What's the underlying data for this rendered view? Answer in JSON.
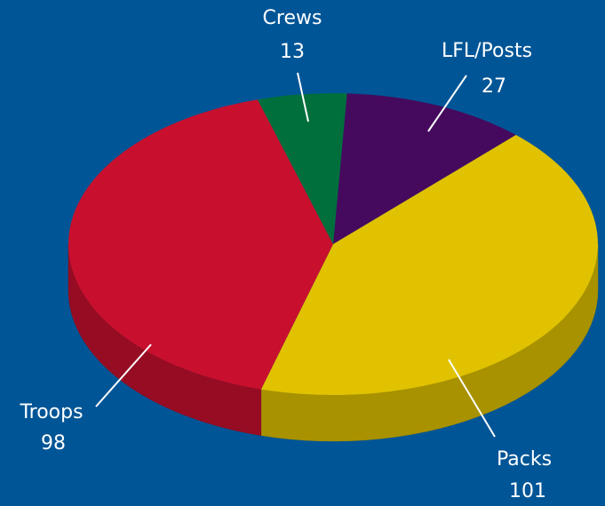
{
  "chart_data": {
    "type": "pie",
    "categories": [
      "LFL/Posts",
      "Packs",
      "Troops",
      "Crews"
    ],
    "values": [
      27,
      101,
      98,
      13
    ],
    "colors": [
      "#450a5e",
      "#e0c200",
      "#c8102e",
      "#006f3c"
    ]
  }
}
